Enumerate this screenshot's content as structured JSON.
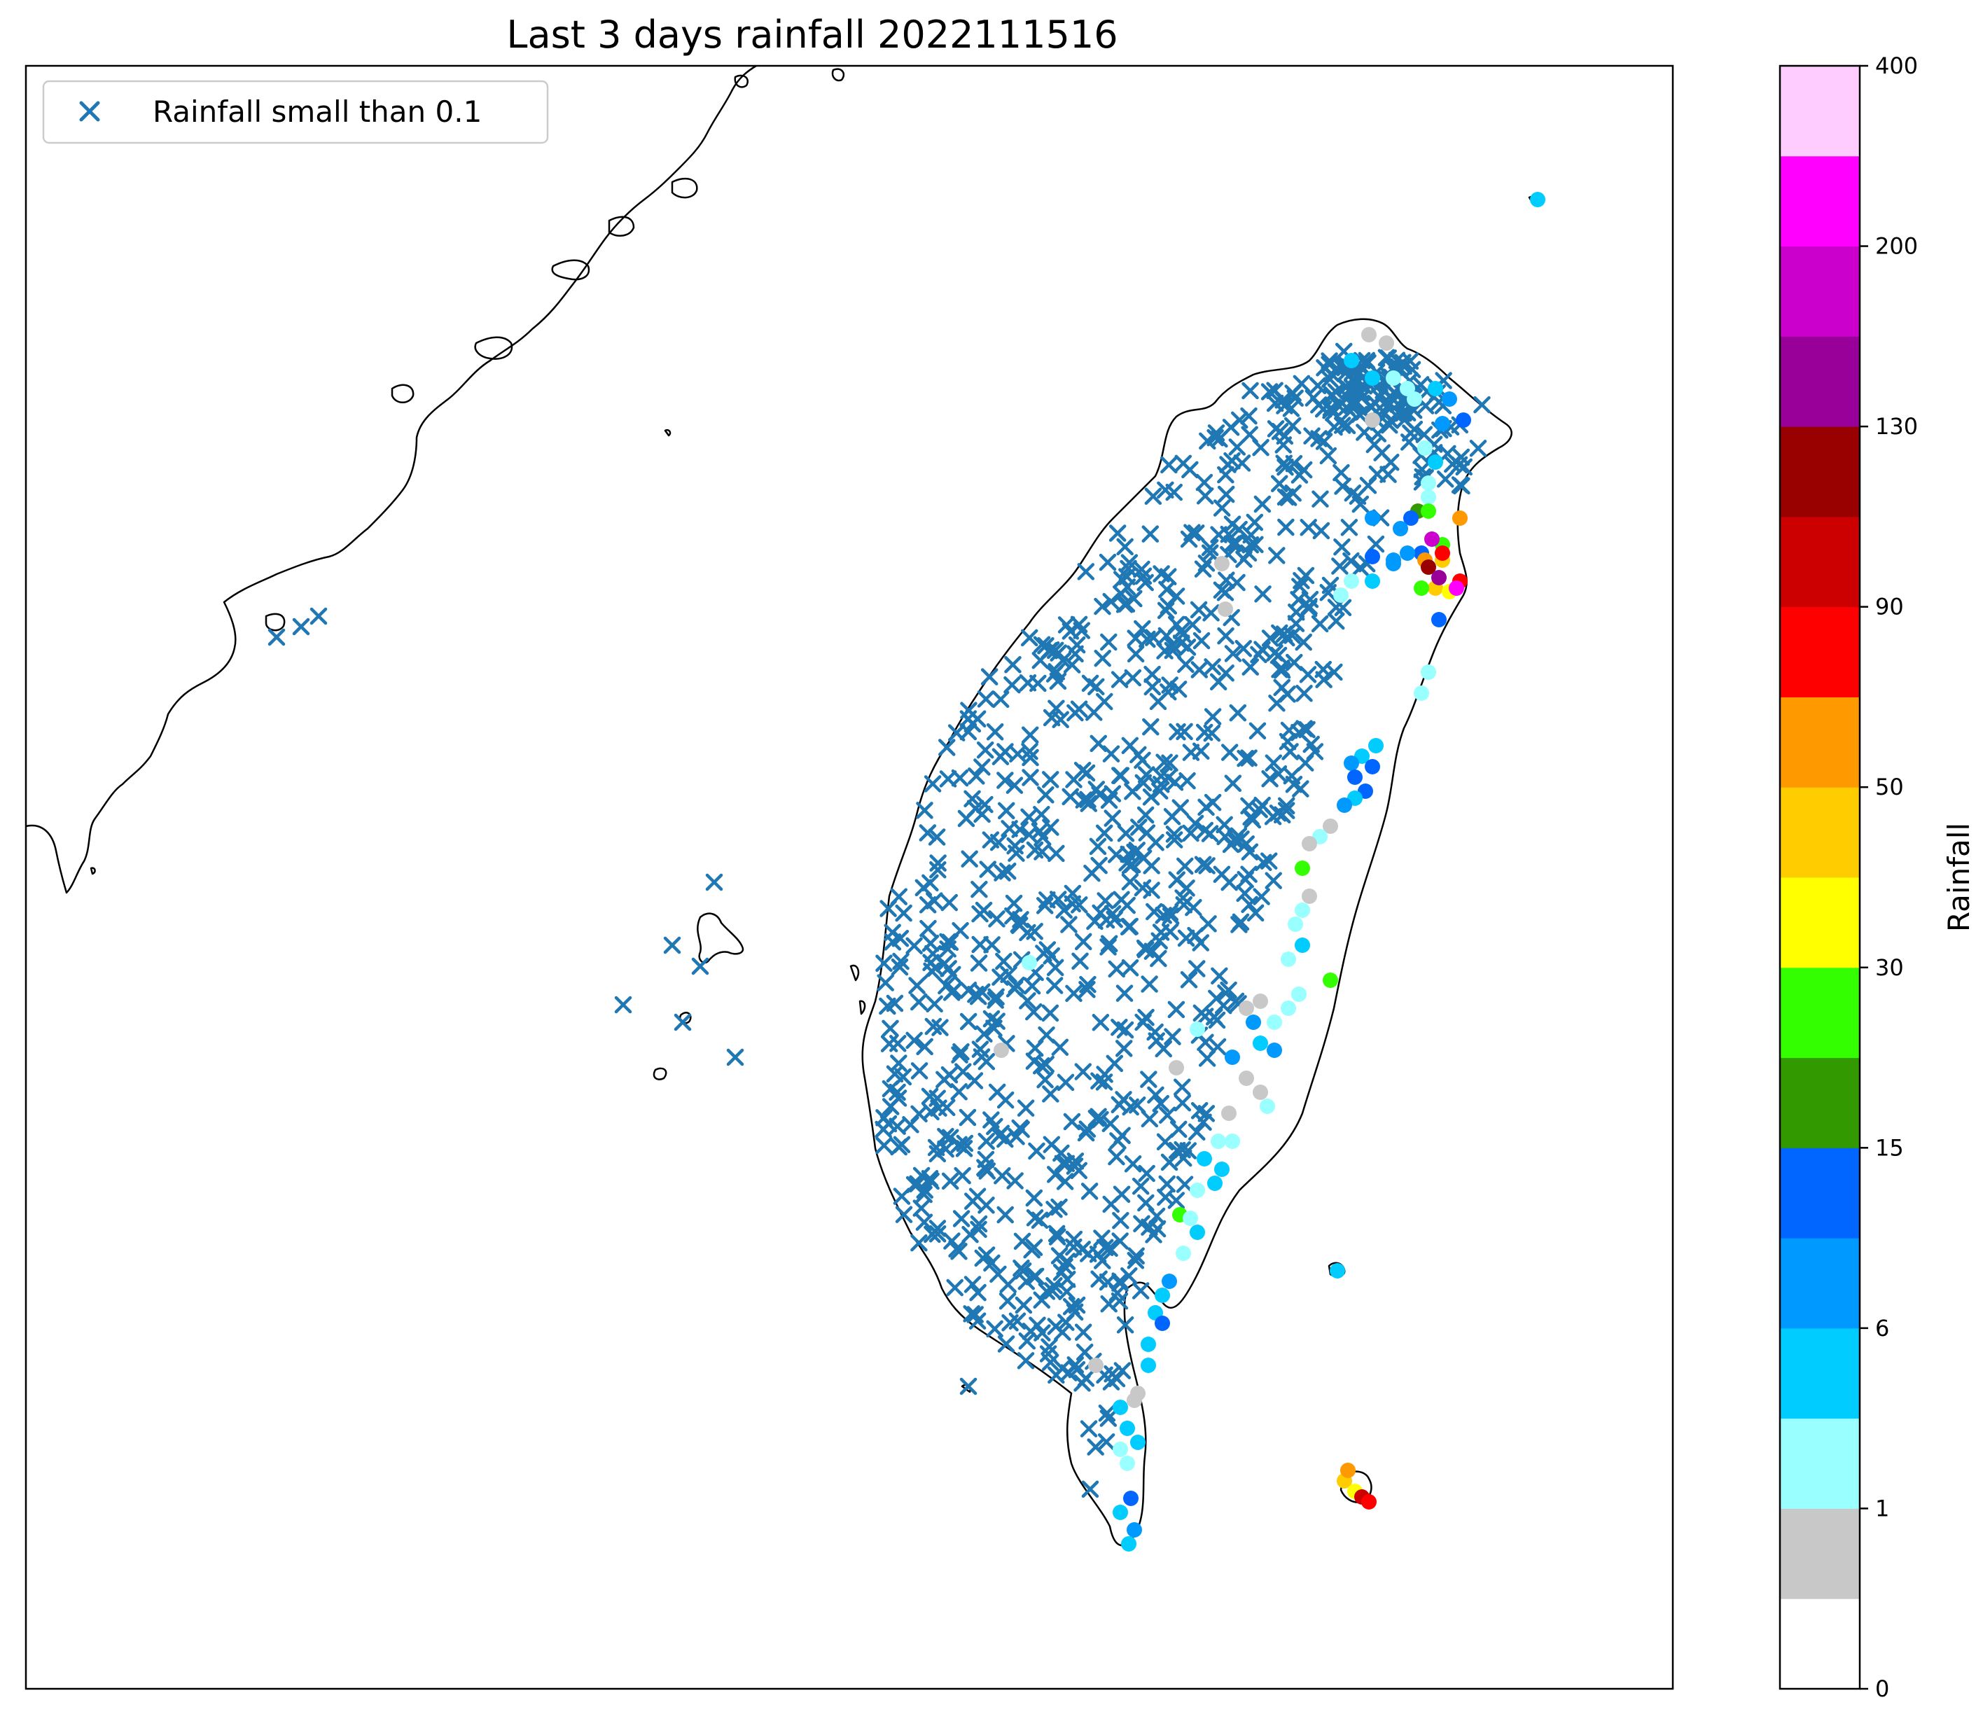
{
  "map": {
    "title": "Last 3 days rainfall 2022111516",
    "legend": {
      "marker": "x",
      "label": "Rainfall small than 0.1",
      "marker_color": "#1f77b4"
    },
    "colorbar": {
      "label": "Rainfall",
      "ticks": [
        "0",
        "1",
        "6",
        "15",
        "30",
        "50",
        "90",
        "130",
        "200",
        "400"
      ],
      "colors": [
        "#ffffff",
        "#c8c8c8",
        "#99ffff",
        "#00ccff",
        "#0099ff",
        "#0066ff",
        "#339900",
        "#33ff00",
        "#ffff00",
        "#ffcc00",
        "#ff9900",
        "#ff0000",
        "#cc0000",
        "#990000",
        "#990099",
        "#cc00cc",
        "#ff00ff",
        "#ffccff"
      ]
    },
    "coastline_color": "#000000",
    "x_marker_color": "#1f77b4"
  }
}
